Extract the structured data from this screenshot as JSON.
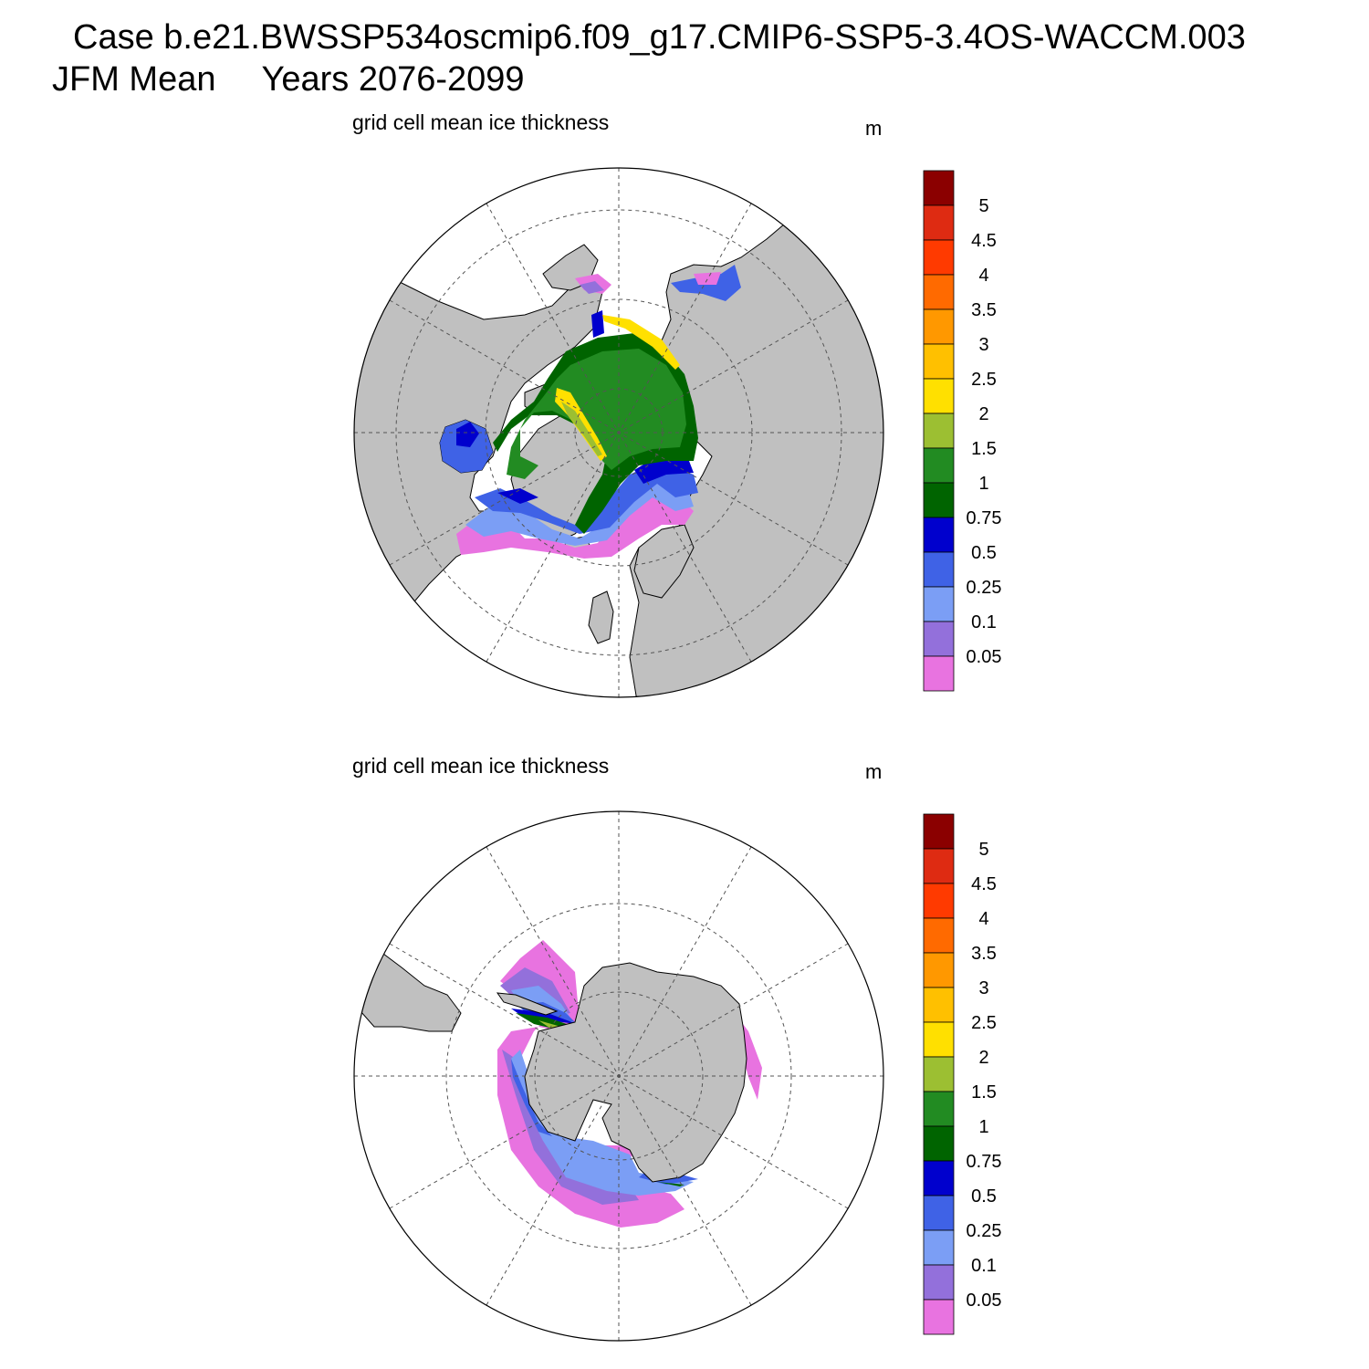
{
  "header": {
    "case_title": "Case b.e21.BWSSP534oscmip6.f09_g17.CMIP6-SSP5-3.4OS-WACCM.003",
    "season": "JFM Mean",
    "years": "Years 2076-2099"
  },
  "colors": {
    "land": "#c0c0c0",
    "ocean": "#ffffff",
    "coast": "#000000",
    "grid": "#555555"
  },
  "panels": [
    {
      "hemisphere": "north",
      "title": "grid cell mean ice thickness",
      "units": "m"
    },
    {
      "hemisphere": "south",
      "title": "grid cell mean ice thickness",
      "units": "m"
    }
  ],
  "colorbar": {
    "labels": [
      "5",
      "4.5",
      "4",
      "3.5",
      "3",
      "2.5",
      "2",
      "1.5",
      "1",
      "0.75",
      "0.5",
      "0.25",
      "0.1",
      "0.05"
    ],
    "colors": [
      "#8b0000",
      "#de2b12",
      "#ff3a00",
      "#ff6a00",
      "#ff9800",
      "#ffc000",
      "#ffe000",
      "#9cbf32",
      "#228b22",
      "#006400",
      "#0000cd",
      "#3f62e6",
      "#7b9ef5",
      "#9370db",
      "#e873e0"
    ]
  }
}
